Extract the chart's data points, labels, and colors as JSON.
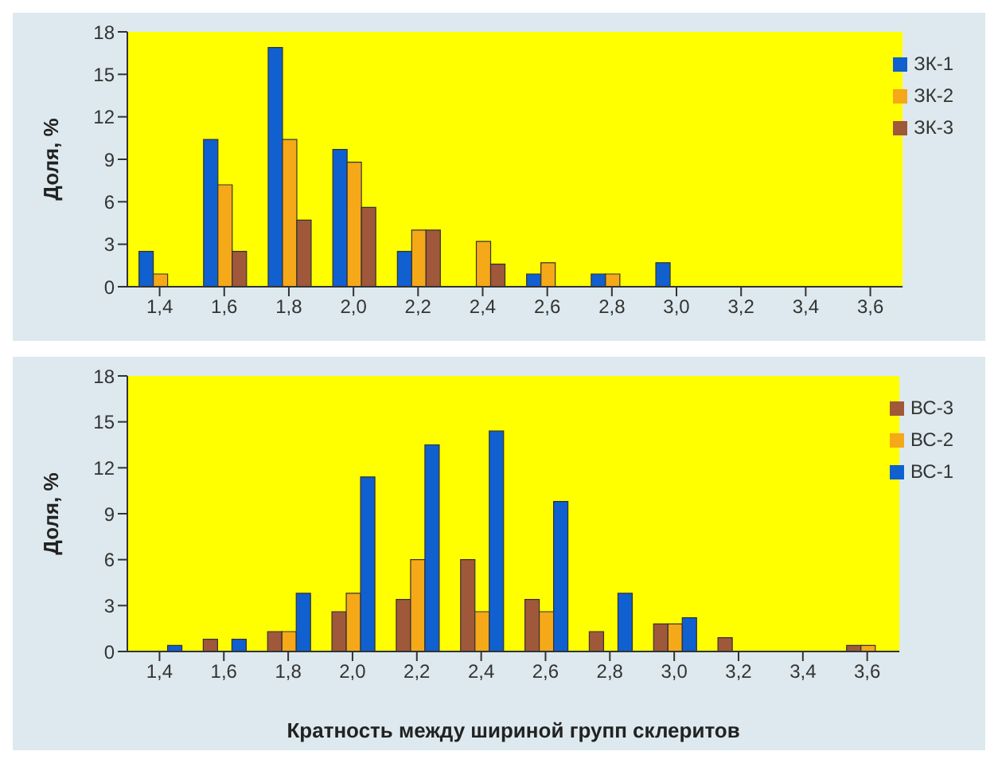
{
  "chart_data": [
    {
      "type": "bar",
      "categories": [
        "1,4",
        "1,6",
        "1,8",
        "2,0",
        "2,2",
        "2,4",
        "2,6",
        "2,8",
        "3,0",
        "3,2",
        "3,4",
        "3,6"
      ],
      "ylabel": "Доля, %",
      "ylim": [
        0,
        18
      ],
      "yticks": [
        0,
        3,
        6,
        9,
        12,
        15,
        18
      ],
      "legend": "top right",
      "grid": false,
      "series": [
        {
          "name": "ЗК-1",
          "color": "#1060d0",
          "values": [
            2.5,
            10.4,
            16.9,
            9.7,
            2.5,
            0,
            0.9,
            0.9,
            1.7,
            0,
            0,
            0
          ]
        },
        {
          "name": "ЗК-2",
          "color": "#f5a818",
          "values": [
            0.9,
            7.2,
            10.4,
            8.8,
            4,
            3.2,
            1.7,
            0.9,
            0,
            0,
            0,
            0
          ]
        },
        {
          "name": "ЗК-3",
          "color": "#a0583a",
          "values": [
            0,
            2.5,
            4.7,
            5.6,
            4,
            1.6,
            0,
            0,
            0,
            0,
            0,
            0
          ]
        }
      ]
    },
    {
      "type": "bar",
      "categories": [
        "1,4",
        "1,6",
        "1,8",
        "2,0",
        "2,2",
        "2,4",
        "2,6",
        "2,8",
        "3,0",
        "3,2",
        "3,4",
        "3,6"
      ],
      "ylabel": "Доля, %",
      "xlabel": "Кратность между шириной групп склеритов",
      "ylim": [
        0,
        18
      ],
      "yticks": [
        0,
        3,
        6,
        9,
        12,
        15,
        18
      ],
      "legend": "top right",
      "grid": false,
      "series": [
        {
          "name": "ВС-3",
          "color": "#a0583a",
          "values": [
            0,
            0.8,
            1.3,
            2.6,
            3.4,
            6,
            3.4,
            1.3,
            1.8,
            0.9,
            0,
            0.4
          ]
        },
        {
          "name": "ВС-2",
          "color": "#f5a818",
          "values": [
            0,
            0,
            1.3,
            3.8,
            6,
            2.6,
            2.6,
            0,
            1.8,
            0,
            0,
            0.4
          ]
        },
        {
          "name": "ВС-1",
          "color": "#1060d0",
          "values": [
            0.4,
            0.8,
            3.8,
            11.4,
            13.5,
            14.4,
            9.8,
            3.8,
            2.2,
            0,
            0,
            0
          ]
        }
      ]
    }
  ]
}
